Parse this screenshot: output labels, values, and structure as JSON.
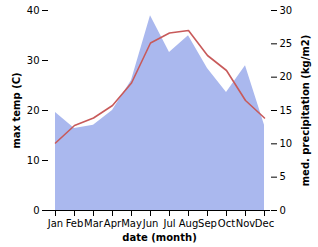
{
  "chart_data": {
    "type": "line",
    "x_label": "date (month)",
    "y_label": "max temp (C)",
    "y2_label": "med. precipitation (kg/m2)",
    "categories": [
      "Jan",
      "Feb",
      "Mar",
      "Apr",
      "May",
      "Jun",
      "Jul",
      "Aug",
      "Sep",
      "Oct",
      "Nov",
      "Dec"
    ],
    "series": [
      {
        "name": "max temp",
        "type": "line",
        "color": "#c85a5a",
        "values": [
          13.5,
          17,
          18.5,
          21,
          25.5,
          33.5,
          35.5,
          36,
          31,
          28,
          22,
          18.5
        ]
      },
      {
        "name": "med. precipitation",
        "type": "area",
        "color": "#aab8ee",
        "axis": "y2",
        "values": [
          14.7,
          12.3,
          12.8,
          15,
          19.5,
          29.2,
          23.7,
          26.2,
          21.3,
          17.7,
          21.7,
          12.8
        ]
      }
    ],
    "ylim": [
      0,
      40
    ],
    "yticks": [
      0,
      10,
      20,
      30,
      40
    ],
    "y2lim": [
      0,
      30
    ],
    "y2ticks": [
      0,
      5,
      10,
      15,
      20,
      25,
      30
    ],
    "grid": false
  }
}
